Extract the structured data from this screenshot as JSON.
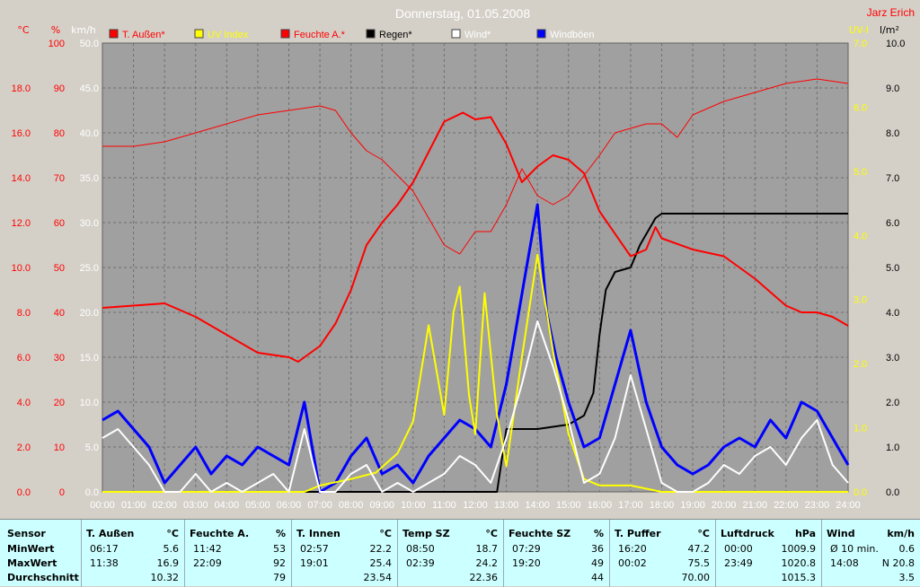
{
  "header": {
    "title": "Donnerstag, 01.05.2008",
    "author": "Jarz Erich"
  },
  "axes": {
    "left_units": [
      "°C",
      "%",
      "km/h"
    ],
    "right_units": [
      "UV-I",
      "l/m²"
    ]
  },
  "legend": [
    {
      "label": "T. Außen*",
      "color": "#ff0000",
      "text_color": "#ff0000"
    },
    {
      "label": "UV Index",
      "color": "#ffff00",
      "text_color": "#ffff00"
    },
    {
      "label": "Feuchte A.*",
      "color": "#ff0000",
      "text_color": "#ff0000"
    },
    {
      "label": "Regen*",
      "color": "#000000",
      "text_color": "#000000"
    },
    {
      "label": "Wind*",
      "color": "#ffffff",
      "text_color": "#ffffff"
    },
    {
      "label": "Windböen",
      "color": "#0000ff",
      "text_color": "#ffffff"
    }
  ],
  "chart_data": {
    "type": "line",
    "title": "Donnerstag, 01.05.2008",
    "x_ticks": [
      "00:00",
      "01:00",
      "02:00",
      "03:00",
      "04:00",
      "05:00",
      "06:00",
      "07:00",
      "08:00",
      "09:00",
      "10:00",
      "11:00",
      "12:00",
      "13:00",
      "14:00",
      "15:00",
      "16:00",
      "17:00",
      "18:00",
      "19:00",
      "20:00",
      "21:00",
      "22:00",
      "23:00",
      "24:00"
    ],
    "axis_temp": {
      "unit": "°C",
      "min": 0,
      "max": 20,
      "ticks": [
        "0.0",
        "2.0",
        "4.0",
        "6.0",
        "8.0",
        "10.0",
        "12.0",
        "14.0",
        "16.0",
        "18.0"
      ]
    },
    "axis_humidity": {
      "unit": "%",
      "min": 0,
      "max": 100,
      "ticks": [
        "0",
        "10",
        "20",
        "30",
        "40",
        "50",
        "60",
        "70",
        "80",
        "90",
        "100"
      ]
    },
    "axis_wind": {
      "unit": "km/h",
      "min": 0,
      "max": 50,
      "ticks": [
        "0.0",
        "5.0",
        "10.0",
        "15.0",
        "20.0",
        "25.0",
        "30.0",
        "35.0",
        "40.0",
        "45.0",
        "50.0"
      ]
    },
    "axis_uv": {
      "unit": "UV-I",
      "min": 0,
      "max": 7,
      "ticks": [
        "0.0",
        "1.0",
        "2.0",
        "3.0",
        "4.0",
        "5.0",
        "6.0",
        "7.0"
      ]
    },
    "axis_rain": {
      "unit": "l/m²",
      "min": 0,
      "max": 10,
      "ticks": [
        "0.0",
        "1.0",
        "2.0",
        "3.0",
        "4.0",
        "5.0",
        "6.0",
        "7.0",
        "8.0",
        "9.0",
        "10.0"
      ]
    },
    "grid": true,
    "series": [
      {
        "name": "T. Außen*",
        "axis": "temp",
        "color": "#ff0000",
        "width": 2,
        "x": [
          0,
          1,
          2,
          3,
          4,
          5,
          6,
          6.3,
          7,
          7.5,
          8,
          8.5,
          9,
          9.5,
          10,
          11,
          11.6,
          12,
          12.5,
          13,
          13.5,
          14,
          14.5,
          15,
          15.5,
          16,
          17,
          17.5,
          17.8,
          18,
          19,
          20,
          21,
          21.5,
          22,
          22.5,
          23,
          23.5,
          24
        ],
        "y": [
          8.2,
          8.3,
          8.4,
          7.8,
          7.0,
          6.2,
          6.0,
          5.8,
          6.5,
          7.5,
          9.0,
          11.0,
          12.0,
          12.8,
          13.8,
          16.5,
          16.9,
          16.6,
          16.7,
          15.5,
          13.8,
          14.5,
          15.0,
          14.8,
          14.2,
          12.5,
          10.5,
          10.8,
          11.8,
          11.3,
          10.8,
          10.5,
          9.5,
          8.9,
          8.3,
          8.0,
          8.0,
          7.8,
          7.4
        ]
      },
      {
        "name": "Feuchte A.*",
        "axis": "humidity",
        "color": "#ff0000",
        "width": 1,
        "x": [
          0,
          1,
          2,
          3,
          4,
          5,
          6,
          7,
          7.5,
          8,
          8.5,
          9,
          10,
          11,
          11.5,
          12,
          12.5,
          13,
          13.5,
          14,
          14.5,
          15,
          16,
          16.5,
          17,
          17.5,
          18,
          18.5,
          19,
          20,
          21,
          22,
          23,
          24
        ],
        "y": [
          77,
          77,
          78,
          80,
          82,
          84,
          85,
          86,
          85,
          80,
          76,
          74,
          67,
          55,
          53,
          58,
          58,
          64,
          72,
          66,
          64,
          66,
          75,
          80,
          81,
          82,
          82,
          79,
          84,
          87,
          89,
          91,
          92,
          91
        ]
      },
      {
        "name": "Wind*",
        "axis": "wind",
        "color": "#ffffff",
        "width": 2,
        "x": [
          0,
          0.5,
          1,
          1.5,
          2,
          2.5,
          3,
          3.5,
          4,
          4.5,
          5,
          5.5,
          6,
          6.5,
          7,
          7.5,
          8,
          8.5,
          9,
          9.5,
          10,
          10.5,
          11,
          11.5,
          12,
          12.5,
          13,
          13.5,
          14,
          14.5,
          15,
          15.5,
          16,
          16.5,
          17,
          17.5,
          18,
          18.5,
          19,
          19.5,
          20,
          20.5,
          21,
          21.5,
          22,
          22.5,
          23,
          23.5,
          24
        ],
        "y": [
          6,
          7,
          5,
          3,
          0,
          0,
          2,
          0,
          1,
          0,
          1,
          2,
          0,
          7,
          0,
          0,
          2,
          3,
          0,
          1,
          0,
          1,
          2,
          4,
          3,
          1,
          6,
          12,
          19,
          14,
          8,
          1,
          2,
          6,
          13,
          7,
          1,
          0,
          0,
          1,
          3,
          2,
          4,
          5,
          3,
          6,
          8,
          3,
          1
        ]
      },
      {
        "name": "Windböen",
        "axis": "wind",
        "color": "#0000ff",
        "width": 3,
        "x": [
          0,
          0.5,
          1,
          1.5,
          2,
          2.5,
          3,
          3.5,
          4,
          4.5,
          5,
          5.5,
          6,
          6.5,
          7,
          7.5,
          8,
          8.5,
          9,
          9.5,
          10,
          10.5,
          11,
          11.5,
          12,
          12.5,
          13,
          13.3,
          13.6,
          14,
          14.3,
          14.6,
          15,
          15.5,
          16,
          16.5,
          17,
          17.5,
          18,
          18.5,
          19,
          19.5,
          20,
          20.5,
          21,
          21.5,
          22,
          22.5,
          23,
          23.5,
          24
        ],
        "y": [
          8,
          9,
          7,
          5,
          1,
          3,
          5,
          2,
          4,
          3,
          5,
          4,
          3,
          10,
          0,
          1,
          4,
          6,
          2,
          3,
          1,
          4,
          6,
          8,
          7,
          5,
          12,
          18,
          24,
          32,
          20,
          15,
          10,
          5,
          6,
          12,
          18,
          10,
          5,
          3,
          2,
          3,
          5,
          6,
          5,
          8,
          6,
          10,
          9,
          6,
          3
        ]
      },
      {
        "name": "UV Index",
        "axis": "uv",
        "color": "#ffff00",
        "width": 2,
        "x": [
          0,
          6.5,
          7,
          8,
          8.8,
          9.5,
          10,
          10.3,
          10.5,
          11,
          11.3,
          11.5,
          11.8,
          12,
          12.3,
          12.7,
          13,
          13.5,
          14,
          14.5,
          15,
          15.5,
          16,
          17,
          18,
          24
        ],
        "y": [
          0,
          0,
          0.1,
          0.2,
          0.3,
          0.6,
          1.1,
          2.0,
          2.6,
          1.2,
          2.8,
          3.2,
          1.5,
          0.9,
          3.1,
          1.2,
          0.4,
          2.1,
          3.7,
          2.2,
          0.9,
          0.2,
          0.1,
          0.1,
          0,
          0
        ]
      },
      {
        "name": "Regen*",
        "axis": "rain",
        "color": "#000000",
        "width": 2,
        "x": [
          0,
          12.7,
          13,
          14,
          15,
          15.5,
          15.8,
          16,
          16.2,
          16.5,
          17,
          17.3,
          17.8,
          18,
          19,
          20,
          21,
          22,
          23,
          24
        ],
        "y": [
          0,
          0,
          1.4,
          1.4,
          1.5,
          1.7,
          2.2,
          3.5,
          4.5,
          4.9,
          5.0,
          5.5,
          6.1,
          6.2,
          6.2,
          6.2,
          6.2,
          6.2,
          6.2,
          6.2
        ]
      }
    ]
  },
  "stats": {
    "row_labels": {
      "header": "Sensor",
      "min": "MinWert",
      "max": "MaxWert",
      "avg": "Durchschnitt"
    },
    "columns": [
      {
        "name": "T. Außen",
        "unit": "°C",
        "min_time": "06:17",
        "min_val": "5.6",
        "max_time": "11:38",
        "max_val": "16.9",
        "avg": "10.32"
      },
      {
        "name": "Feuchte A.",
        "unit": "%",
        "min_time": "11:42",
        "min_val": "53",
        "max_time": "22:09",
        "max_val": "92",
        "avg": "79"
      },
      {
        "name": "T. Innen",
        "unit": "°C",
        "min_time": "02:57",
        "min_val": "22.2",
        "max_time": "19:01",
        "max_val": "25.4",
        "avg": "23.54"
      },
      {
        "name": "Temp SZ",
        "unit": "°C",
        "min_time": "08:50",
        "min_val": "18.7",
        "max_time": "02:39",
        "max_val": "24.2",
        "avg": "22.36"
      },
      {
        "name": "Feuchte SZ",
        "unit": "%",
        "min_time": "07:29",
        "min_val": "36",
        "max_time": "19:20",
        "max_val": "49",
        "avg": "44"
      },
      {
        "name": "T. Puffer",
        "unit": "°C",
        "min_time": "16:20",
        "min_val": "47.2",
        "max_time": "00:02",
        "max_val": "75.5",
        "avg": "70.00"
      },
      {
        "name": "Luftdruck",
        "unit": "hPa",
        "min_time": "00:00",
        "min_val": "1009.9",
        "max_time": "23:49",
        "max_val": "1020.8",
        "avg": "1015.3"
      },
      {
        "name": "Wind",
        "unit": "km/h",
        "min_time": "Ø 10 min.",
        "min_val": "0.6",
        "max_time": "14:08",
        "max_val": "N 20.8",
        "avg": "3.5"
      }
    ]
  }
}
